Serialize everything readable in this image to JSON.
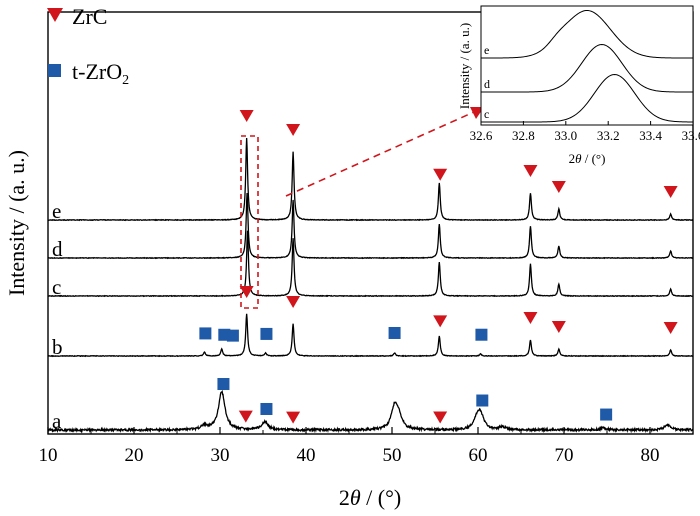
{
  "chart_data": [
    {
      "type": "line",
      "title": "",
      "xlabel": "2θ / (°)",
      "xlabel_parts": {
        "prefix": "2",
        "var": "θ",
        "suffix": " / (°)"
      },
      "ylabel": "Intensity / (a. u.)",
      "xlim": [
        10,
        85
      ],
      "xticks": [
        "10",
        "20",
        "30",
        "40",
        "50",
        "60",
        "70",
        "80"
      ],
      "y_ticks_shown": false,
      "grid": false,
      "legend": {
        "placement": "top-left",
        "entries": [
          {
            "name": "ZrC",
            "marker": "down-triangle",
            "color": "#d0161c"
          },
          {
            "name": "t-ZrO",
            "subscript": "2",
            "marker": "square",
            "color": "#1f5aa8"
          }
        ]
      },
      "series": [
        {
          "name": "a",
          "baseline": 0,
          "peaks": [
            [
              28.2,
              4
            ],
            [
              30.2,
              38
            ],
            [
              35.2,
              8
            ],
            [
              50.3,
              22
            ],
            [
              50.8,
              12
            ],
            [
              59.9,
              10
            ],
            [
              60.3,
              14
            ],
            [
              62.8,
              3
            ],
            [
              74.6,
              2
            ],
            [
              82.0,
              5
            ]
          ],
          "zrc_markers": [
            33.0,
            38.5,
            55.6
          ],
          "zro2_markers": [
            30.4,
            35.4,
            60.5,
            74.9
          ]
        },
        {
          "name": "b",
          "baseline": 74,
          "peaks": [
            [
              28.2,
              4
            ],
            [
              30.2,
              7
            ],
            [
              33.1,
              42
            ],
            [
              35.3,
              3
            ],
            [
              38.5,
              32
            ],
            [
              50.3,
              3
            ],
            [
              55.5,
              20
            ],
            [
              60.3,
              2
            ],
            [
              66.1,
              16
            ],
            [
              69.4,
              7
            ],
            [
              82.4,
              6
            ]
          ],
          "zrc_markers": [
            33.1,
            38.5,
            55.6,
            66.1,
            69.4,
            82.4
          ],
          "zro2_markers": [
            28.3,
            30.5,
            31.5,
            35.4,
            50.3,
            60.4
          ]
        },
        {
          "name": "c",
          "baseline": 134,
          "peaks": [
            [
              33.2,
              65
            ],
            [
              38.5,
              58
            ],
            [
              55.5,
              34
            ],
            [
              66.1,
              32
            ],
            [
              69.4,
              12
            ],
            [
              82.4,
              7
            ]
          ]
        },
        {
          "name": "d",
          "baseline": 172,
          "peaks": [
            [
              33.15,
              65
            ],
            [
              38.5,
              58
            ],
            [
              55.5,
              34
            ],
            [
              66.1,
              32
            ],
            [
              69.4,
              12
            ],
            [
              82.4,
              7
            ]
          ]
        },
        {
          "name": "e",
          "baseline": 210,
          "peaks": [
            [
              33.1,
              82
            ],
            [
              38.5,
              68
            ],
            [
              55.5,
              37
            ],
            [
              66.1,
              27
            ],
            [
              69.4,
              11
            ],
            [
              82.4,
              6
            ]
          ],
          "zrc_markers": [
            33.1,
            38.5,
            55.6,
            66.1,
            69.4,
            82.4
          ]
        }
      ],
      "annotation": "dashed red box around the ZrC peak near 33° with a dashed leader line to the inset"
    },
    {
      "type": "line",
      "title": "",
      "xlabel": "2θ / (°)",
      "ylabel": "Intensity / (a. u.)",
      "xlim": [
        32.6,
        33.6
      ],
      "xticks": [
        "32.6",
        "32.8",
        "33.0",
        "33.2",
        "33.4",
        "33.6"
      ],
      "series": [
        {
          "name": "c",
          "center": 33.23,
          "sigma": 0.095,
          "height": 0.95
        },
        {
          "name": "d",
          "center": 33.17,
          "sigma": 0.095,
          "height": 0.95
        },
        {
          "name": "e",
          "center": 33.1,
          "sigma": 0.11,
          "height": 0.95
        }
      ]
    }
  ]
}
